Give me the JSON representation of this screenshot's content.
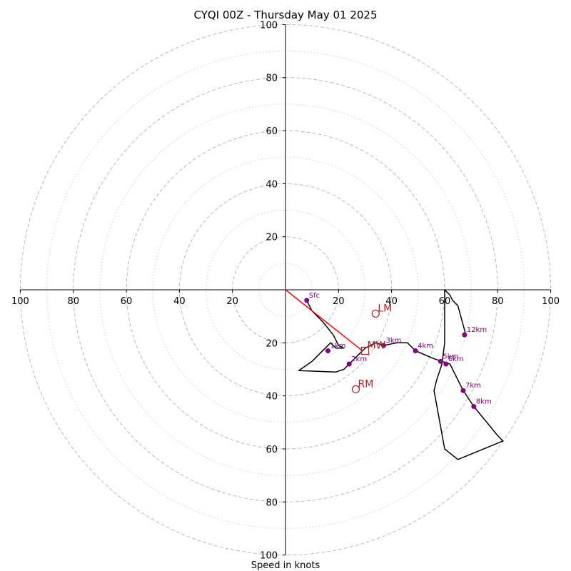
{
  "chart_data": {
    "type": "line",
    "title": "CYQI 00Z - Thursday May 01 2025",
    "xlabel": "Speed in knots",
    "ylabel": "",
    "xlim": [
      -100,
      100
    ],
    "ylim": [
      -100,
      100
    ],
    "rings": [
      20,
      40,
      60,
      80,
      100
    ],
    "minor_rings": [
      10,
      30,
      50,
      70,
      90
    ],
    "ticks": [
      {
        "v": -100,
        "label": "100"
      },
      {
        "v": -80,
        "label": "80"
      },
      {
        "v": -60,
        "label": "60"
      },
      {
        "v": -40,
        "label": "40"
      },
      {
        "v": -20,
        "label": "20"
      },
      {
        "v": 20,
        "label": "20"
      },
      {
        "v": 40,
        "label": "40"
      },
      {
        "v": 60,
        "label": "60"
      },
      {
        "v": 80,
        "label": "80"
      },
      {
        "v": 100,
        "label": "100"
      }
    ],
    "hodograph": {
      "color": "#000000",
      "points": [
        [
          8,
          -4
        ],
        [
          10,
          -8
        ],
        [
          14,
          -12
        ],
        [
          18,
          -17
        ],
        [
          20,
          -21
        ],
        [
          22,
          -22
        ],
        [
          19,
          -22
        ],
        [
          17,
          -20
        ],
        [
          13,
          -24
        ],
        [
          10,
          -27
        ],
        [
          5,
          -30.5
        ],
        [
          19,
          -31
        ],
        [
          22,
          -30
        ],
        [
          24,
          -28
        ],
        [
          28,
          -24
        ],
        [
          30,
          -22
        ],
        [
          34,
          -20
        ],
        [
          37,
          -21
        ],
        [
          42,
          -20
        ],
        [
          46,
          -20
        ],
        [
          49,
          -23
        ],
        [
          56,
          -26
        ],
        [
          59,
          -27
        ],
        [
          62,
          -28
        ],
        [
          67,
          -38
        ],
        [
          71,
          -44
        ],
        [
          80,
          -55
        ],
        [
          82,
          -57
        ],
        [
          65,
          -64
        ],
        [
          60,
          -60
        ],
        [
          56,
          -38
        ],
        [
          57,
          -34
        ],
        [
          59,
          -28
        ],
        [
          60,
          -20
        ],
        [
          60,
          -7
        ],
        [
          60,
          0
        ],
        [
          62,
          -2
        ],
        [
          63,
          -4
        ],
        [
          65,
          -6
        ],
        [
          68,
          -17
        ]
      ]
    },
    "height_markers": {
      "color": "#800080",
      "points": [
        {
          "label": "Sfc",
          "x": 8,
          "y": -4
        },
        {
          "label": "1km",
          "x": 16,
          "y": -23
        },
        {
          "label": "2km",
          "x": 24,
          "y": -28
        },
        {
          "label": "3km",
          "x": 37,
          "y": -21
        },
        {
          "label": "4km",
          "x": 49,
          "y": -23
        },
        {
          "label": "5km",
          "x": 58.5,
          "y": -27
        },
        {
          "label": "6km",
          "x": 60.5,
          "y": -28
        },
        {
          "label": "7km",
          "x": 67,
          "y": -38
        },
        {
          "label": "8km",
          "x": 71,
          "y": -44
        },
        {
          "label": "12km",
          "x": 67.5,
          "y": -17
        }
      ]
    },
    "shear_vector": {
      "color": "#ff0000",
      "from": [
        0,
        0
      ],
      "to": [
        29,
        -23
      ]
    },
    "storm_motion": {
      "color": "#b22222",
      "markers": [
        {
          "label": "LM",
          "shape": "circle",
          "x": 34,
          "y": -9
        },
        {
          "label": "RM",
          "shape": "circle",
          "x": 26.5,
          "y": -37.5
        },
        {
          "label": "MW",
          "shape": "square",
          "x": 30,
          "y": -23
        }
      ]
    },
    "grid": true,
    "legend": "none"
  }
}
